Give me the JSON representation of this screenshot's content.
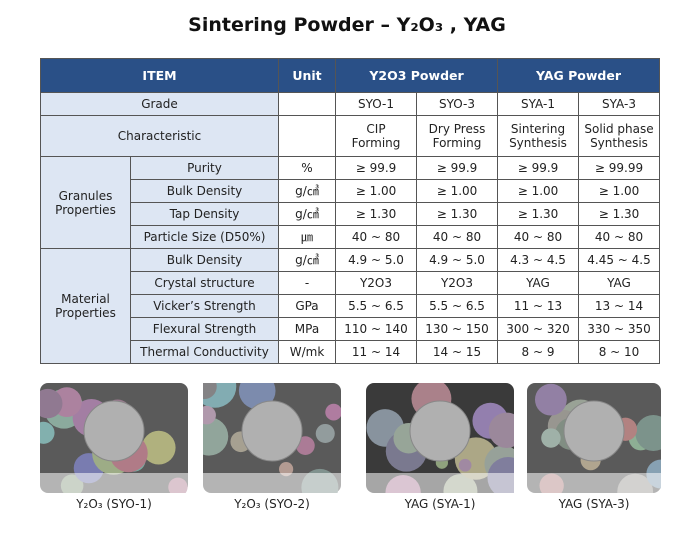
{
  "title": "Sintering Powder – Y₂O₃ , YAG",
  "table": {
    "header": [
      "ITEM",
      "Unit",
      "Y2O3 Powder",
      "YAG Powder"
    ],
    "rows": [
      {
        "label": "Grade",
        "cells": [
          "SYO-1",
          "SYO-3",
          "SYA-1",
          "SYA-3"
        ]
      },
      {
        "label": "Characteristic",
        "cells": [
          "CIP\nForming",
          "Dry Press\nForming",
          "Sintering\nSynthesis",
          "Solid phase\nSynthesis"
        ]
      }
    ],
    "groups": [
      {
        "label": "Granules\nProperties",
        "rows": [
          {
            "label": "Purity",
            "unit": "%",
            "cells": [
              "≥ 99.9",
              "≥ 99.9",
              "≥ 99.9",
              "≥ 99.99"
            ]
          },
          {
            "label": "Bulk Density",
            "unit": "g/㎤",
            "cells": [
              "≥ 1.00",
              "≥ 1.00",
              "≥ 1.00",
              "≥ 1.00"
            ]
          },
          {
            "label": "Tap Density",
            "unit": "g/㎤",
            "cells": [
              "≥ 1.30",
              "≥ 1.30",
              "≥ 1.30",
              "≥ 1.30"
            ]
          },
          {
            "label": "Particle Size (D50%)",
            "unit": "㎛",
            "cells": [
              "40 ~ 80",
              "40 ~ 80",
              "40 ~ 80",
              "40 ~ 80"
            ]
          }
        ]
      },
      {
        "label": "Material\nProperties",
        "rows": [
          {
            "label": "Bulk Density",
            "unit": "g/㎤",
            "cells": [
              "4.9 ~ 5.0",
              "4.9 ~ 5.0",
              "4.3 ~ 4.5",
              "4.45 ~ 4.5"
            ]
          },
          {
            "label": "Crystal structure",
            "unit": "-",
            "cells": [
              "Y2O3",
              "Y2O3",
              "YAG",
              "YAG"
            ]
          },
          {
            "label": "Vicker’s Strength",
            "unit": "GPa",
            "cells": [
              "5.5 ~ 6.5",
              "5.5 ~ 6.5",
              "11 ~ 13",
              "13 ~ 14"
            ]
          },
          {
            "label": "Flexural Strength",
            "unit": "MPa",
            "cells": [
              "110 ~ 140",
              "130 ~ 150",
              "300 ~ 320",
              "330 ~ 350"
            ]
          },
          {
            "label": "Thermal Conductivity",
            "unit": "W/mk",
            "cells": [
              "11 ~ 14",
              "14 ~ 15",
              "8 ~ 9",
              "8 ~ 10"
            ]
          }
        ]
      }
    ]
  },
  "images": [
    {
      "caption": "Y₂O₃ (SYO-1)"
    },
    {
      "caption": "Y₂O₃ (SYO-2)"
    },
    {
      "caption": "YAG (SYA-1)"
    },
    {
      "caption": "YAG (SYA-3)"
    }
  ]
}
